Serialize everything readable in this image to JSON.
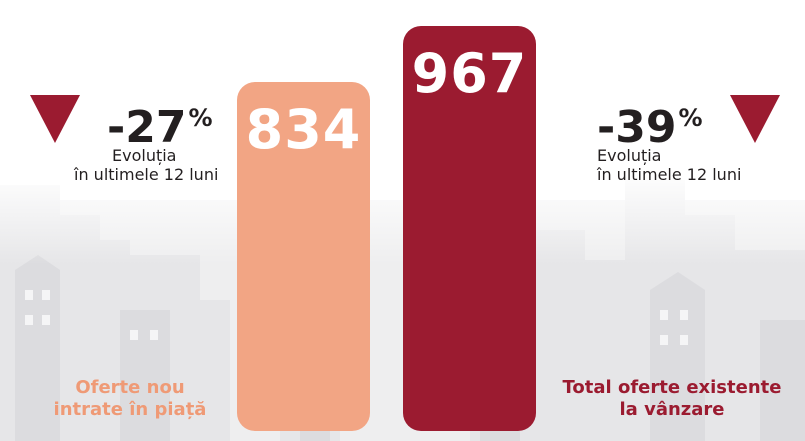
{
  "chart_data": {
    "type": "bar",
    "categories": [
      "Oferte nou intrate în piață",
      "Total oferte existente la vânzare"
    ],
    "values": [
      834,
      967
    ],
    "value_labels": [
      "834",
      "967"
    ],
    "series": [
      {
        "label_lines": [
          "Oferte nou",
          "intrate în piață"
        ],
        "value": 834,
        "color": "#f2a584",
        "change": "-27",
        "change_unit": "%",
        "change_caption": [
          "Evoluția",
          "în ultimele 12 luni"
        ]
      },
      {
        "label_lines": [
          "Total oferte existente",
          "la vânzare"
        ],
        "value": 967,
        "color": "#9b1b30",
        "change": "-39",
        "change_unit": "%",
        "change_caption": [
          "Evoluția",
          "în ultimele 12 luni"
        ]
      }
    ],
    "trend_color": "#9b1b30",
    "grid": false,
    "legend": "none"
  }
}
